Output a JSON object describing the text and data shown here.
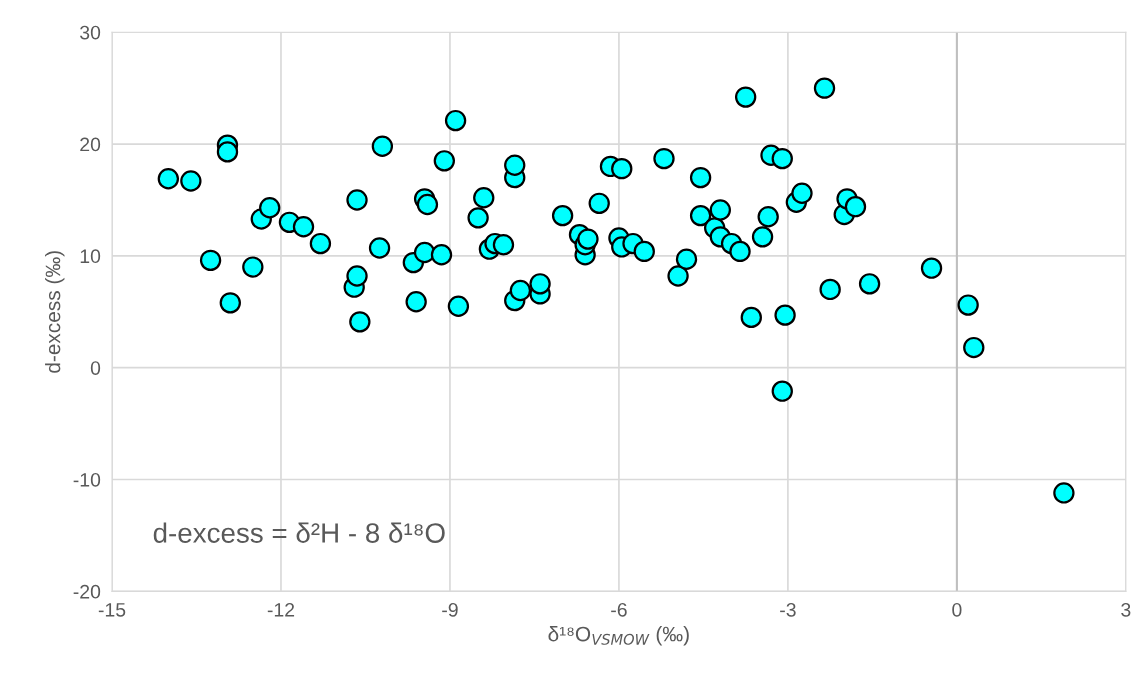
{
  "chart_data": {
    "type": "scatter",
    "xlabel": "δ¹⁸O$_{VSMOW}$ (‰)",
    "ylabel": "d-excess (‰)",
    "annotations": [
      "d-excess = δ²H - 8 δ¹⁸O"
    ],
    "xlim": [
      -15,
      3
    ],
    "xticks": [
      -15,
      -12,
      -9,
      -6,
      -3,
      0,
      3
    ],
    "ylim": [
      -20,
      30
    ],
    "yticks": [
      -20,
      -10,
      0,
      10,
      20,
      30
    ],
    "grid": true,
    "marker": "circle",
    "ref_lines": [
      {
        "axis": "x",
        "value": 0,
        "color": "#bfbfbf"
      }
    ],
    "series": [
      {
        "color": "#00ffff",
        "x": [
          -14.0,
          -13.6,
          -13.25,
          -12.95,
          -12.95,
          -12.9,
          -12.5,
          -12.35,
          -12.2,
          -11.85,
          -11.6,
          -11.3,
          -10.7,
          -10.65,
          -10.65,
          -10.6,
          -10.25,
          -10.2,
          -9.65,
          -9.6,
          -9.45,
          -9.45,
          -9.4,
          -9.15,
          -9.1,
          -8.9,
          -8.85,
          -8.5,
          -8.4,
          -8.3,
          -8.2,
          -8.05,
          -7.85,
          -7.85,
          -7.85,
          -7.75,
          -7.4,
          -7.4,
          -7.0,
          -6.7,
          -6.6,
          -6.6,
          -6.55,
          -6.35,
          -6.15,
          -5.95,
          -6.0,
          -5.95,
          -5.75,
          -5.55,
          -5.2,
          -4.95,
          -4.8,
          -4.55,
          -4.55,
          -4.3,
          -4.2,
          -4.2,
          -4.0,
          -3.85,
          -3.75,
          -3.65,
          -3.45,
          -3.35,
          -3.3,
          -3.1,
          -3.05,
          -3.1,
          -2.85,
          -2.75,
          -2.35,
          -2.25,
          -2.0,
          -1.95,
          -1.8,
          -1.55,
          -0.45,
          0.2,
          0.3,
          1.9
        ],
        "values": [
          16.9,
          16.7,
          9.6,
          19.9,
          19.3,
          5.8,
          9.0,
          13.3,
          14.3,
          13.0,
          12.6,
          11.1,
          7.2,
          15.0,
          8.2,
          4.1,
          10.7,
          19.8,
          9.4,
          5.9,
          10.3,
          15.1,
          14.6,
          10.1,
          18.5,
          22.1,
          5.5,
          13.4,
          15.2,
          10.6,
          11.1,
          11.0,
          17.0,
          18.1,
          6.0,
          6.9,
          6.6,
          7.5,
          13.6,
          11.9,
          10.1,
          11.0,
          11.5,
          14.7,
          18.0,
          17.8,
          11.6,
          10.8,
          11.1,
          10.4,
          18.7,
          8.2,
          9.7,
          17.0,
          13.6,
          12.5,
          11.7,
          14.1,
          11.1,
          10.4,
          24.2,
          4.5,
          11.7,
          13.5,
          19.0,
          18.7,
          4.7,
          -2.1,
          14.8,
          15.6,
          25.0,
          7.0,
          13.7,
          15.1,
          14.4,
          7.5,
          8.9,
          5.6,
          1.8,
          -11.2
        ]
      }
    ]
  }
}
